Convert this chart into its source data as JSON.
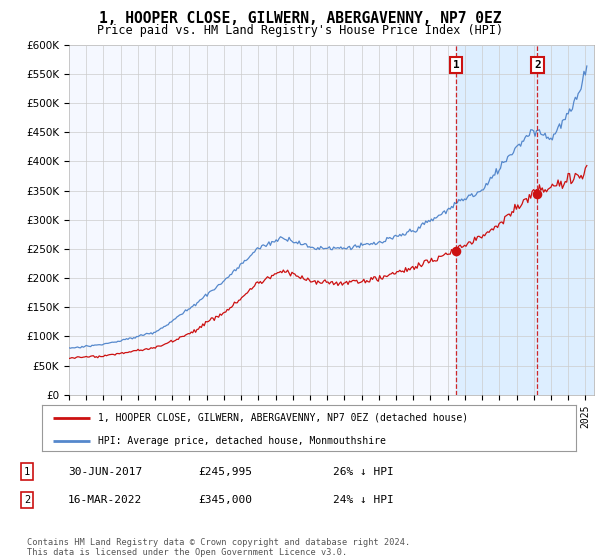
{
  "title": "1, HOOPER CLOSE, GILWERN, ABERGAVENNY, NP7 0EZ",
  "subtitle": "Price paid vs. HM Land Registry's House Price Index (HPI)",
  "ylim": [
    0,
    600000
  ],
  "yticks": [
    0,
    50000,
    100000,
    150000,
    200000,
    250000,
    300000,
    350000,
    400000,
    450000,
    500000,
    550000,
    600000
  ],
  "ytick_labels": [
    "£0",
    "£50K",
    "£100K",
    "£150K",
    "£200K",
    "£250K",
    "£300K",
    "£350K",
    "£400K",
    "£450K",
    "£500K",
    "£550K",
    "£600K"
  ],
  "hpi_color": "#5588cc",
  "price_color": "#cc1111",
  "background_color": "#ffffff",
  "plot_bg_color": "#f5f8ff",
  "grid_color": "#cccccc",
  "shade_color": "#ddeeff",
  "purchase1_date_f": 2017.5,
  "purchase1_price": 245995,
  "purchase2_date_f": 2022.21,
  "purchase2_price": 345000,
  "legend_entry1": "1, HOOPER CLOSE, GILWERN, ABERGAVENNY, NP7 0EZ (detached house)",
  "legend_entry2": "HPI: Average price, detached house, Monmouthshire",
  "footer": "Contains HM Land Registry data © Crown copyright and database right 2024.\nThis data is licensed under the Open Government Licence v3.0.",
  "xmin": 1995,
  "xmax": 2025.5,
  "note1_num": "1",
  "note1_date": "30-JUN-2017",
  "note1_price": "£245,995",
  "note1_pct": "26% ↓ HPI",
  "note2_num": "2",
  "note2_date": "16-MAR-2022",
  "note2_price": "£345,000",
  "note2_pct": "24% ↓ HPI"
}
